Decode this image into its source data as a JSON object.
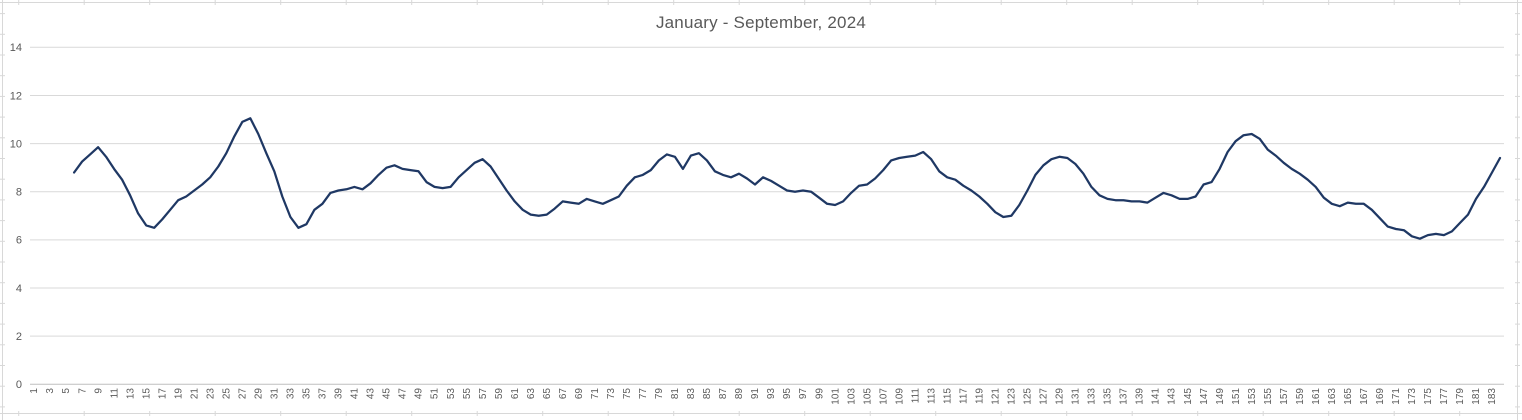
{
  "chart_data": {
    "type": "line",
    "title": "January - September, 2024",
    "xlabel": "",
    "ylabel": "",
    "ylim": [
      0,
      14
    ],
    "xlim": [
      1,
      184
    ],
    "grid": true,
    "legend_position": "none",
    "line_color": "#1F3864",
    "label_color": "#595959",
    "gridline_color": "#D9D9D9",
    "axis_color": "#BFBFBF",
    "edge_grid_color": "#D8D8D8",
    "y_ticks": [
      0,
      2,
      4,
      6,
      8,
      10,
      12,
      14
    ],
    "x_ticks": [
      1,
      3,
      5,
      7,
      9,
      11,
      13,
      15,
      17,
      19,
      21,
      23,
      25,
      27,
      29,
      31,
      33,
      35,
      37,
      39,
      41,
      43,
      45,
      47,
      49,
      51,
      53,
      55,
      57,
      59,
      61,
      63,
      65,
      67,
      69,
      71,
      73,
      75,
      77,
      79,
      81,
      83,
      85,
      87,
      89,
      91,
      93,
      95,
      97,
      99,
      101,
      103,
      105,
      107,
      109,
      111,
      113,
      115,
      117,
      119,
      121,
      123,
      125,
      127,
      129,
      131,
      133,
      135,
      137,
      139,
      141,
      143,
      145,
      147,
      149,
      151,
      153,
      155,
      157,
      159,
      161,
      163,
      165,
      167,
      169,
      171,
      173,
      175,
      177,
      179,
      181,
      183
    ],
    "x_start": 6,
    "values": [
      8.8,
      9.25,
      9.55,
      9.85,
      9.45,
      8.95,
      8.5,
      7.85,
      7.1,
      6.6,
      6.5,
      6.85,
      7.25,
      7.65,
      7.8,
      8.05,
      8.3,
      8.6,
      9.05,
      9.6,
      10.3,
      10.9,
      11.05,
      10.4,
      9.6,
      8.85,
      7.8,
      6.95,
      6.5,
      6.65,
      7.25,
      7.5,
      7.95,
      8.05,
      8.1,
      8.2,
      8.1,
      8.35,
      8.7,
      9.0,
      9.1,
      8.95,
      8.9,
      8.85,
      8.4,
      8.2,
      8.15,
      8.2,
      8.6,
      8.9,
      9.2,
      9.35,
      9.05,
      8.55,
      8.05,
      7.6,
      7.25,
      7.05,
      7.0,
      7.05,
      7.3,
      7.6,
      7.55,
      7.5,
      7.7,
      7.6,
      7.5,
      7.65,
      7.8,
      8.25,
      8.6,
      8.7,
      8.9,
      9.3,
      9.55,
      9.45,
      8.95,
      9.5,
      9.6,
      9.3,
      8.85,
      8.7,
      8.6,
      8.75,
      8.55,
      8.3,
      8.6,
      8.45,
      8.25,
      8.05,
      8.0,
      8.05,
      8.0,
      7.75,
      7.5,
      7.45,
      7.6,
      7.95,
      8.25,
      8.3,
      8.55,
      8.9,
      9.3,
      9.4,
      9.45,
      9.5,
      9.65,
      9.35,
      8.85,
      8.6,
      8.5,
      8.25,
      8.05,
      7.8,
      7.5,
      7.15,
      6.95,
      7.0,
      7.45,
      8.05,
      8.7,
      9.1,
      9.35,
      9.45,
      9.4,
      9.15,
      8.75,
      8.2,
      7.85,
      7.7,
      7.65,
      7.65,
      7.6,
      7.6,
      7.55,
      7.75,
      7.95,
      7.85,
      7.7,
      7.7,
      7.8,
      8.3,
      8.4,
      8.95,
      9.65,
      10.1,
      10.35,
      10.4,
      10.2,
      9.75,
      9.5,
      9.2,
      8.95,
      8.75,
      8.5,
      8.2,
      7.75,
      7.5,
      7.4,
      7.55,
      7.5,
      7.5,
      7.25,
      6.9,
      6.55,
      6.45,
      6.4,
      6.15,
      6.05,
      6.2,
      6.25,
      6.2,
      6.35,
      6.7,
      7.05,
      7.7,
      8.2,
      8.8,
      9.4
    ]
  }
}
